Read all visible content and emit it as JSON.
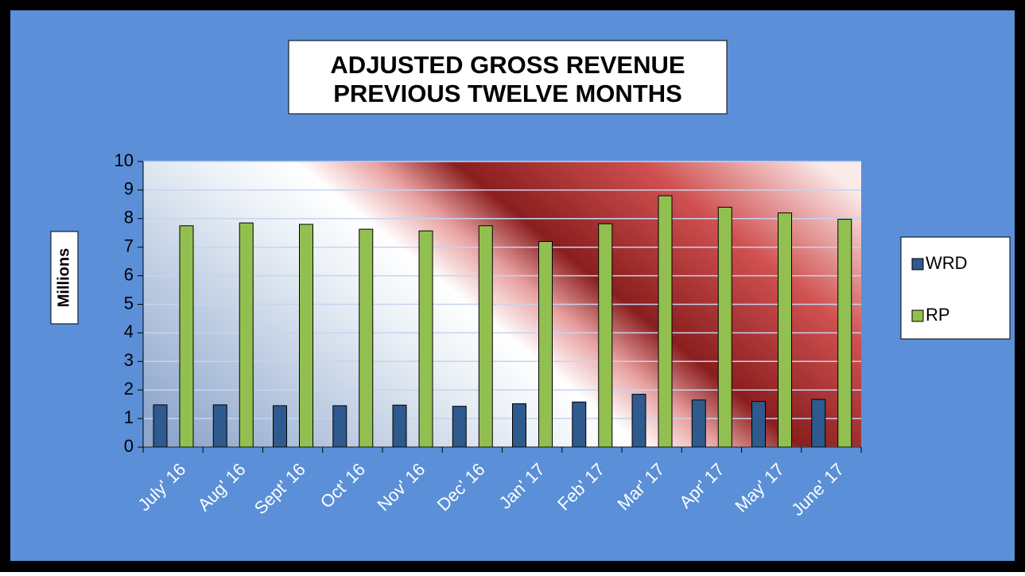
{
  "chart_data": {
    "type": "bar",
    "title": [
      "ADJUSTED GROSS REVENUE",
      "PREVIOUS TWELVE MONTHS"
    ],
    "y_label": "Millions",
    "categories": [
      "July' 16",
      "Aug' 16",
      "Sept' 16",
      "Oct' 16",
      "Nov' 16",
      "Dec' 16",
      "Jan' 17",
      "Feb' 17",
      "Mar' 17",
      "Apr' 17",
      "May' 17",
      "June' 17"
    ],
    "series": [
      {
        "name": "WRD",
        "color": "#2e5a8e",
        "values": [
          1.48,
          1.48,
          1.45,
          1.45,
          1.47,
          1.43,
          1.52,
          1.58,
          1.85,
          1.65,
          1.6,
          1.67
        ]
      },
      {
        "name": "RP",
        "color": "#92c050",
        "values": [
          7.75,
          7.85,
          7.8,
          7.63,
          7.57,
          7.75,
          7.2,
          7.82,
          8.8,
          8.4,
          8.2,
          7.98
        ]
      }
    ],
    "ylim": [
      0,
      10
    ],
    "yticks": [
      0,
      1,
      2,
      3,
      4,
      5,
      6,
      7,
      8,
      9,
      10
    ],
    "grid": true,
    "legend": "right"
  }
}
